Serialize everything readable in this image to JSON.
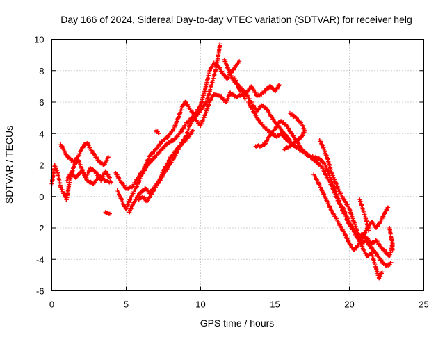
{
  "chart_data": {
    "type": "scatter",
    "title": "Day 166 of 2024, Sidereal Day-to-day VTEC variation (SDTVAR) for receiver helg",
    "xlabel": "GPS time / hours",
    "ylabel": "SDTVAR / TECUs",
    "xlim": [
      0,
      25
    ],
    "ylim": [
      -6,
      10
    ],
    "xticks": [
      0,
      5,
      10,
      15,
      20,
      25
    ],
    "yticks": [
      -6,
      -4,
      -2,
      0,
      2,
      4,
      6,
      8,
      10
    ],
    "xtick_labels": [
      "0",
      "5",
      "10",
      "15",
      "20",
      "25"
    ],
    "ytick_labels": [
      "-6",
      "-4",
      "-2",
      "0",
      "2",
      "4",
      "6",
      "8",
      "10"
    ],
    "grid": true,
    "marker": "+",
    "series": [
      {
        "name": "helg",
        "color": "#ff0000",
        "tracks": [
          [
            [
              0.0,
              0.8
            ],
            [
              0.2,
              2.0
            ],
            [
              0.4,
              1.5
            ],
            [
              0.6,
              0.6
            ],
            [
              0.8,
              0.2
            ],
            [
              1.0,
              -0.2
            ],
            [
              1.2,
              1.0
            ],
            [
              1.5,
              2.0
            ],
            [
              1.8,
              2.3
            ],
            [
              2.0,
              1.8
            ],
            [
              2.3,
              1.2
            ],
            [
              2.6,
              1.8
            ],
            [
              3.0,
              1.5
            ],
            [
              3.3,
              1.0
            ],
            [
              3.6,
              1.6
            ],
            [
              3.9,
              1.2
            ]
          ],
          [
            [
              0.6,
              3.3
            ],
            [
              0.8,
              3.0
            ],
            [
              1.0,
              2.6
            ],
            [
              1.2,
              2.4
            ],
            [
              1.5,
              2.2
            ],
            [
              1.8,
              2.6
            ],
            [
              2.0,
              3.0
            ],
            [
              2.2,
              3.3
            ],
            [
              2.4,
              3.4
            ],
            [
              2.6,
              3.0
            ],
            [
              2.9,
              2.6
            ],
            [
              3.2,
              2.2
            ],
            [
              3.5,
              2.0
            ],
            [
              3.8,
              2.5
            ]
          ],
          [
            [
              1.0,
              1.0
            ],
            [
              1.3,
              1.5
            ],
            [
              1.6,
              1.2
            ],
            [
              2.0,
              1.6
            ],
            [
              2.4,
              1.0
            ],
            [
              2.8,
              0.8
            ],
            [
              3.2,
              1.3
            ],
            [
              3.6,
              1.0
            ],
            [
              4.0,
              0.9
            ]
          ],
          [
            [
              3.6,
              -1.0
            ],
            [
              3.9,
              -1.1
            ]
          ],
          [
            [
              4.4,
              0.4
            ],
            [
              4.6,
              0.0
            ],
            [
              4.8,
              -0.5
            ],
            [
              5.0,
              -0.8
            ],
            [
              5.2,
              -0.3
            ],
            [
              5.5,
              0.3
            ],
            [
              5.8,
              0.8
            ],
            [
              6.0,
              1.3
            ],
            [
              6.3,
              1.8
            ],
            [
              6.6,
              2.2
            ],
            [
              7.0,
              2.6
            ],
            [
              7.4,
              3.0
            ],
            [
              7.8,
              3.4
            ],
            [
              8.2,
              3.6
            ],
            [
              8.6,
              4.0
            ],
            [
              9.0,
              4.6
            ],
            [
              9.4,
              5.0
            ],
            [
              9.8,
              5.2
            ],
            [
              10.1,
              5.6
            ],
            [
              10.4,
              6.0
            ],
            [
              10.7,
              7.0
            ],
            [
              11.0,
              8.0
            ],
            [
              11.2,
              9.0
            ],
            [
              11.3,
              9.7
            ]
          ],
          [
            [
              4.3,
              1.5
            ],
            [
              4.6,
              1.0
            ],
            [
              5.0,
              0.5
            ],
            [
              5.4,
              0.6
            ],
            [
              5.8,
              1.2
            ],
            [
              6.2,
              1.8
            ],
            [
              6.6,
              2.6
            ],
            [
              7.0,
              3.0
            ],
            [
              7.4,
              3.5
            ],
            [
              7.8,
              3.8
            ],
            [
              8.2,
              4.3
            ],
            [
              8.5,
              5.0
            ],
            [
              8.8,
              5.8
            ],
            [
              9.0,
              6.0
            ],
            [
              9.3,
              5.5
            ],
            [
              9.6,
              5.2
            ],
            [
              10.0,
              5.8
            ],
            [
              10.3,
              6.8
            ],
            [
              10.6,
              8.0
            ],
            [
              10.9,
              8.5
            ],
            [
              11.2,
              8.3
            ],
            [
              11.5,
              7.8
            ],
            [
              11.8,
              7.5
            ],
            [
              12.0,
              7.8
            ],
            [
              12.3,
              8.2
            ],
            [
              12.6,
              8.6
            ]
          ],
          [
            [
              5.2,
              -1.0
            ],
            [
              5.5,
              -0.4
            ],
            [
              5.9,
              0.2
            ],
            [
              6.3,
              0.5
            ],
            [
              6.6,
              0.2
            ],
            [
              6.9,
              0.6
            ],
            [
              7.2,
              0.9
            ],
            [
              7.5,
              1.4
            ],
            [
              7.9,
              2.0
            ],
            [
              8.3,
              2.6
            ],
            [
              8.6,
              3.2
            ],
            [
              9.0,
              3.8
            ],
            [
              9.3,
              4.6
            ],
            [
              9.6,
              5.0
            ],
            [
              10.0,
              4.5
            ],
            [
              10.3,
              5.2
            ],
            [
              10.6,
              6.0
            ],
            [
              10.9,
              6.5
            ],
            [
              11.3,
              6.4
            ],
            [
              11.7,
              6.0
            ],
            [
              12.0,
              6.6
            ],
            [
              12.4,
              6.3
            ],
            [
              12.8,
              6.5
            ],
            [
              13.0,
              6.2
            ]
          ],
          [
            [
              5.8,
              -0.2
            ],
            [
              6.1,
              0.0
            ],
            [
              6.4,
              -0.3
            ],
            [
              6.8,
              0.3
            ],
            [
              7.2,
              1.0
            ],
            [
              7.6,
              1.8
            ],
            [
              8.0,
              2.5
            ],
            [
              8.4,
              3.0
            ],
            [
              8.8,
              3.4
            ],
            [
              9.2,
              3.8
            ],
            [
              9.5,
              4.2
            ]
          ],
          [
            [
              7.0,
              4.2
            ],
            [
              7.2,
              4.0
            ]
          ],
          [
            [
              11.6,
              8.7
            ],
            [
              11.9,
              8.0
            ],
            [
              12.2,
              7.4
            ],
            [
              12.6,
              7.0
            ],
            [
              13.0,
              6.6
            ],
            [
              13.4,
              6.0
            ],
            [
              13.8,
              5.4
            ],
            [
              14.1,
              5.8
            ],
            [
              14.4,
              5.6
            ],
            [
              14.8,
              5.0
            ],
            [
              15.1,
              4.6
            ],
            [
              15.4,
              4.8
            ],
            [
              15.8,
              4.5
            ],
            [
              16.1,
              4.0
            ],
            [
              16.4,
              3.6
            ],
            [
              16.8,
              3.0
            ],
            [
              17.2,
              2.6
            ],
            [
              17.6,
              2.5
            ],
            [
              18.0,
              2.4
            ],
            [
              18.4,
              2.0
            ],
            [
              18.7,
              1.2
            ],
            [
              19.0,
              0.5
            ],
            [
              19.3,
              -0.3
            ],
            [
              19.6,
              -0.8
            ],
            [
              19.9,
              -1.4
            ],
            [
              20.2,
              -2.0
            ],
            [
              20.5,
              -2.6
            ],
            [
              20.8,
              -3.0
            ],
            [
              21.1,
              -2.8
            ],
            [
              21.4,
              -3.2
            ],
            [
              21.7,
              -3.5
            ],
            [
              22.0,
              -3.9
            ],
            [
              22.3,
              -4.3
            ],
            [
              22.6,
              -4.4
            ],
            [
              22.8,
              -4.2
            ]
          ],
          [
            [
              12.3,
              7.5
            ],
            [
              12.6,
              6.8
            ],
            [
              13.0,
              6.5
            ],
            [
              13.4,
              7.0
            ],
            [
              13.8,
              6.4
            ],
            [
              14.1,
              6.5
            ],
            [
              14.4,
              6.8
            ],
            [
              14.7,
              7.0
            ],
            [
              15.0,
              6.7
            ],
            [
              15.3,
              7.1
            ]
          ],
          [
            [
              13.2,
              6.0
            ],
            [
              13.5,
              5.5
            ],
            [
              13.8,
              5.0
            ],
            [
              14.1,
              4.6
            ],
            [
              14.4,
              4.3
            ],
            [
              14.8,
              4.0
            ],
            [
              15.1,
              3.8
            ],
            [
              15.4,
              4.0
            ],
            [
              15.8,
              3.6
            ],
            [
              16.2,
              3.3
            ],
            [
              16.6,
              3.0
            ],
            [
              17.0,
              2.8
            ],
            [
              17.4,
              2.5
            ],
            [
              17.8,
              2.2
            ],
            [
              18.2,
              1.8
            ],
            [
              18.5,
              1.2
            ],
            [
              18.8,
              0.7
            ],
            [
              19.1,
              0.0
            ],
            [
              19.4,
              -0.6
            ],
            [
              19.7,
              -1.2
            ],
            [
              20.0,
              -1.8
            ],
            [
              20.3,
              -2.2
            ],
            [
              20.6,
              -2.6
            ],
            [
              20.9,
              -2.4
            ],
            [
              21.2,
              -2.7
            ],
            [
              21.5,
              -3.0
            ],
            [
              21.8,
              -2.8
            ],
            [
              22.1,
              -3.2
            ],
            [
              22.4,
              -3.5
            ],
            [
              22.7,
              -3.8
            ],
            [
              22.9,
              -3.0
            ]
          ],
          [
            [
              13.7,
              3.2
            ],
            [
              14.0,
              3.2
            ],
            [
              14.3,
              3.3
            ],
            [
              14.6,
              3.8
            ],
            [
              14.9,
              4.2
            ],
            [
              15.2,
              4.5
            ],
            [
              15.6,
              4.0
            ],
            [
              16.0,
              3.6
            ]
          ],
          [
            [
              15.6,
              3.0
            ],
            [
              16.0,
              3.2
            ],
            [
              16.4,
              3.5
            ],
            [
              16.8,
              3.8
            ],
            [
              17.0,
              4.2
            ],
            [
              16.8,
              4.6
            ],
            [
              16.4,
              5.0
            ],
            [
              16.0,
              5.3
            ]
          ],
          [
            [
              18.0,
              3.6
            ],
            [
              18.3,
              3.0
            ],
            [
              18.6,
              2.2
            ],
            [
              18.8,
              1.5
            ],
            [
              19.1,
              0.8
            ],
            [
              19.4,
              0.2
            ],
            [
              19.7,
              -0.3
            ],
            [
              20.0,
              -0.8
            ],
            [
              20.3,
              -1.6
            ],
            [
              20.6,
              -2.4
            ],
            [
              20.9,
              -3.3
            ],
            [
              21.2,
              -3.8
            ],
            [
              21.5,
              -3.6
            ],
            [
              21.8,
              -4.6
            ],
            [
              22.0,
              -5.2
            ],
            [
              22.2,
              -4.8
            ]
          ],
          [
            [
              17.6,
              1.4
            ],
            [
              17.9,
              0.9
            ],
            [
              18.2,
              0.3
            ],
            [
              18.5,
              -0.3
            ],
            [
              18.8,
              -0.9
            ],
            [
              19.1,
              -1.4
            ],
            [
              19.4,
              -1.9
            ],
            [
              19.7,
              -2.4
            ],
            [
              20.0,
              -3.0
            ],
            [
              20.3,
              -3.4
            ],
            [
              20.6,
              -3.1
            ],
            [
              20.9,
              -2.6
            ],
            [
              21.2,
              -2.0
            ],
            [
              21.5,
              -1.6
            ],
            [
              21.8,
              -2.0
            ],
            [
              22.1,
              -1.6
            ],
            [
              22.4,
              -1.0
            ],
            [
              22.6,
              -0.7
            ]
          ],
          [
            [
              20.7,
              -0.2
            ],
            [
              20.9,
              -0.8
            ],
            [
              21.1,
              -1.4
            ],
            [
              21.3,
              -2.2
            ]
          ],
          [
            [
              22.7,
              -2.0
            ],
            [
              22.8,
              -2.6
            ],
            [
              22.9,
              -3.0
            ],
            [
              22.9,
              -3.4
            ]
          ]
        ]
      }
    ]
  }
}
